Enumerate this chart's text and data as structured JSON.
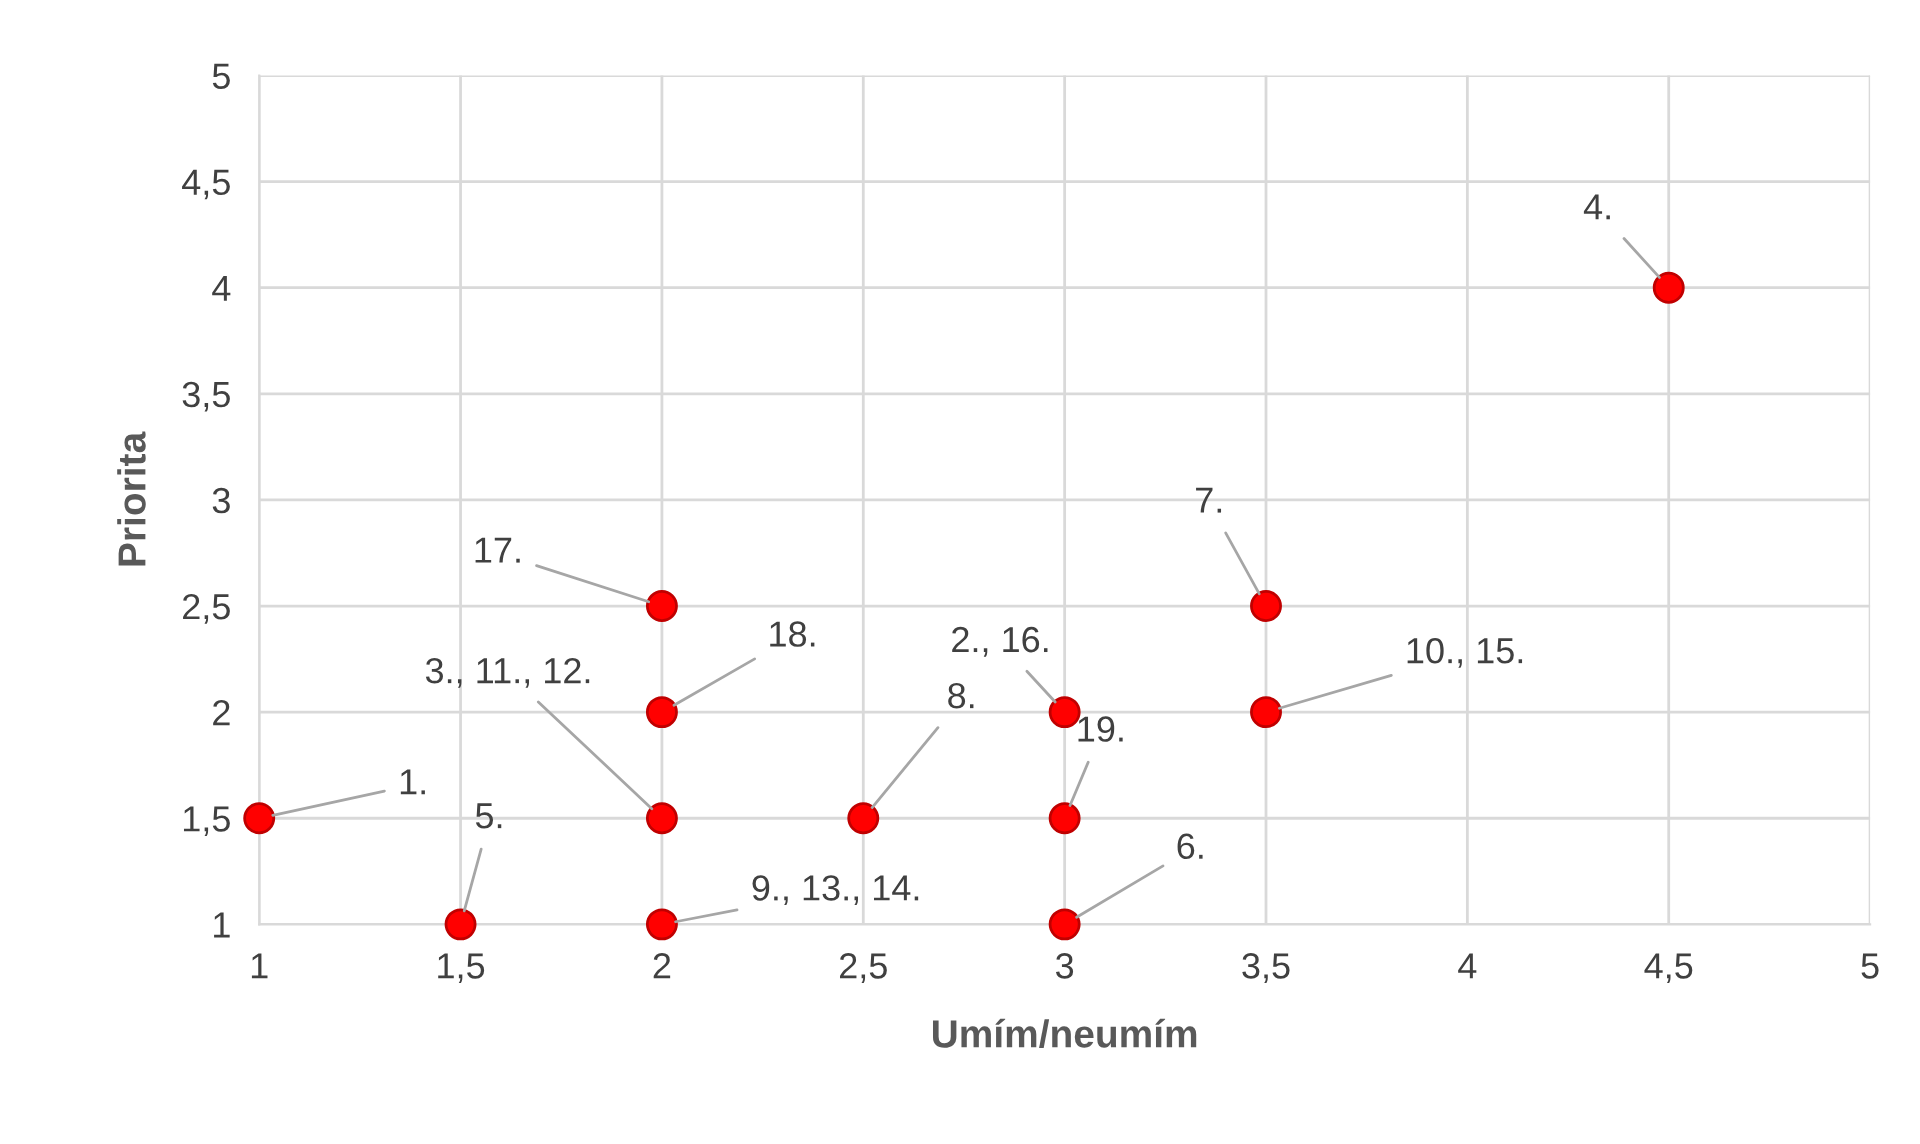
{
  "chart_data": {
    "type": "scatter",
    "xlabel": "Umím/neumím",
    "ylabel": "Priorita",
    "series": [
      {
        "color": "#ff0000",
        "x": [
          1,
          3,
          2,
          4.5,
          1.5,
          3,
          3.5,
          2.5,
          2,
          3.5,
          2,
          2,
          3
        ],
        "values": [
          1.5,
          2,
          1.5,
          4,
          1,
          1,
          2.5,
          1.5,
          1,
          2,
          2.5,
          2,
          1.5
        ]
      }
    ],
    "annotations": [
      {
        "text": "1.",
        "x": 1,
        "y": 1.5
      },
      {
        "text": "2., 16.",
        "x": 3,
        "y": 2
      },
      {
        "text": "3., 11., 12.",
        "x": 2,
        "y": 1.5
      },
      {
        "text": "4.",
        "x": 4.5,
        "y": 4
      },
      {
        "text": "5.",
        "x": 1.5,
        "y": 1
      },
      {
        "text": "6.",
        "x": 3,
        "y": 1
      },
      {
        "text": "7.",
        "x": 3.5,
        "y": 2.5
      },
      {
        "text": "8.",
        "x": 2.5,
        "y": 1.5
      },
      {
        "text": "9., 13., 14.",
        "x": 2,
        "y": 1
      },
      {
        "text": "10., 15.",
        "x": 3.5,
        "y": 2
      },
      {
        "text": "17.",
        "x": 2,
        "y": 2.5
      },
      {
        "text": "18.",
        "x": 2,
        "y": 2
      },
      {
        "text": "19.",
        "x": 3,
        "y": 1.5
      }
    ],
    "xlim": [
      1,
      5
    ],
    "ylim": [
      1,
      5
    ],
    "xticks": [
      1,
      {
        "value": 1.5,
        "label": "1,5"
      },
      2,
      {
        "value": 2.5,
        "label": "2,5"
      },
      3,
      {
        "value": 3.5,
        "label": "3,5"
      },
      4,
      {
        "value": 4.5,
        "label": "4,5"
      },
      5
    ],
    "yticks": [
      1,
      {
        "value": 1.5,
        "label": "1,5"
      },
      2,
      {
        "value": 2.5,
        "label": "2,5"
      },
      3,
      {
        "value": 3.5,
        "label": "3,5"
      },
      4,
      {
        "value": 4.5,
        "label": "4,5"
      },
      5
    ],
    "grid": true,
    "marker": "circle"
  }
}
